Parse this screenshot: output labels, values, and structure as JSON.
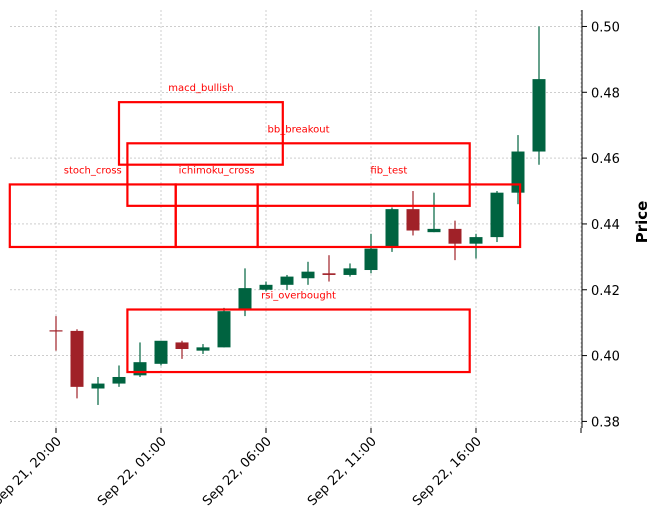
{
  "chart_data": {
    "type": "candlestick",
    "ylabel": "Price",
    "ylim": [
      0.378,
      0.505
    ],
    "y_ticks": [
      "0.38",
      "0.40",
      "0.42",
      "0.44",
      "0.46",
      "0.48",
      "0.50"
    ],
    "x_ticks": [
      "Sep 21, 20:00",
      "Sep 22, 01:00",
      "Sep 22, 06:00",
      "Sep 22, 11:00",
      "Sep 22, 16:00",
      ""
    ],
    "y_axis_position": "right",
    "grid": true,
    "colors": {
      "up": "#006340",
      "down": "#a02128",
      "annotation": "#ff0000"
    },
    "candles": [
      {
        "o": 0.4075,
        "h": 0.412,
        "l": 0.4015,
        "c": 0.4075
      },
      {
        "o": 0.4075,
        "h": 0.408,
        "l": 0.387,
        "c": 0.3905
      },
      {
        "o": 0.39,
        "h": 0.3935,
        "l": 0.385,
        "c": 0.3915
      },
      {
        "o": 0.3915,
        "h": 0.397,
        "l": 0.3905,
        "c": 0.3935
      },
      {
        "o": 0.394,
        "h": 0.404,
        "l": 0.3935,
        "c": 0.398
      },
      {
        "o": 0.3975,
        "h": 0.4045,
        "l": 0.397,
        "c": 0.4045
      },
      {
        "o": 0.404,
        "h": 0.4045,
        "l": 0.399,
        "c": 0.402
      },
      {
        "o": 0.4015,
        "h": 0.4035,
        "l": 0.4005,
        "c": 0.4025
      },
      {
        "o": 0.4025,
        "h": 0.4145,
        "l": 0.4025,
        "c": 0.4135
      },
      {
        "o": 0.414,
        "h": 0.4265,
        "l": 0.412,
        "c": 0.4205
      },
      {
        "o": 0.42,
        "h": 0.4225,
        "l": 0.4195,
        "c": 0.4215
      },
      {
        "o": 0.4215,
        "h": 0.4245,
        "l": 0.42,
        "c": 0.424
      },
      {
        "o": 0.4235,
        "h": 0.4285,
        "l": 0.4215,
        "c": 0.4255
      },
      {
        "o": 0.425,
        "h": 0.4305,
        "l": 0.4225,
        "c": 0.4245
      },
      {
        "o": 0.4245,
        "h": 0.428,
        "l": 0.424,
        "c": 0.4265
      },
      {
        "o": 0.426,
        "h": 0.437,
        "l": 0.425,
        "c": 0.4325
      },
      {
        "o": 0.433,
        "h": 0.445,
        "l": 0.4315,
        "c": 0.4445
      },
      {
        "o": 0.4445,
        "h": 0.45,
        "l": 0.4365,
        "c": 0.438
      },
      {
        "o": 0.4375,
        "h": 0.4495,
        "l": 0.4375,
        "c": 0.4385
      },
      {
        "o": 0.4385,
        "h": 0.441,
        "l": 0.429,
        "c": 0.434
      },
      {
        "o": 0.434,
        "h": 0.437,
        "l": 0.4295,
        "c": 0.436
      },
      {
        "o": 0.436,
        "h": 0.45,
        "l": 0.4345,
        "c": 0.4495
      },
      {
        "o": 0.4495,
        "h": 0.467,
        "l": 0.446,
        "c": 0.462
      },
      {
        "o": 0.462,
        "h": 0.5,
        "l": 0.458,
        "c": 0.484
      }
    ],
    "annotations": [
      {
        "label": "macd_bullish",
        "x0": 3.0,
        "x1": 10.8,
        "y0": 0.458,
        "y1": 0.477
      },
      {
        "label": "bb_breakout",
        "x0": 3.4,
        "x1": 19.7,
        "y0": 0.4455,
        "y1": 0.4645
      },
      {
        "label": "stoch_cross",
        "x0": -2.2,
        "x1": 5.7,
        "y0": 0.433,
        "y1": 0.452
      },
      {
        "label": "ichimoku_cross",
        "x0": 5.7,
        "x1": 9.6,
        "y0": 0.433,
        "y1": 0.452
      },
      {
        "label": "fib_test",
        "x0": 9.6,
        "x1": 22.1,
        "y0": 0.433,
        "y1": 0.452
      },
      {
        "label": "rsi_overbought",
        "x0": 3.4,
        "x1": 19.7,
        "y0": 0.395,
        "y1": 0.414
      }
    ]
  }
}
